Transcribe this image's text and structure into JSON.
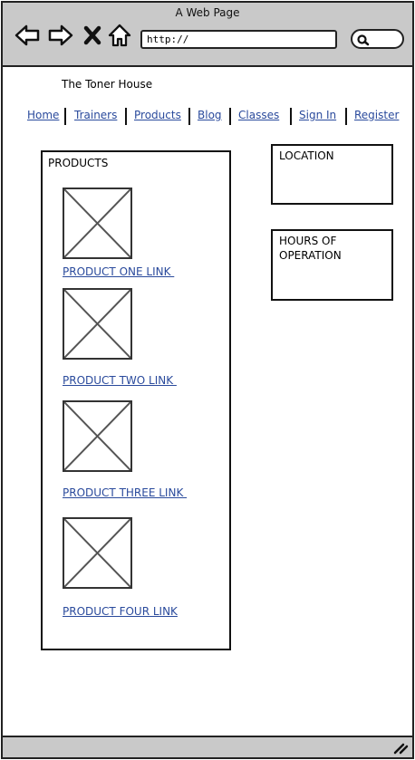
{
  "window": {
    "title": "A Web Page"
  },
  "browser": {
    "url": "http://",
    "buttons": {
      "back": "back-arrow-icon",
      "forward": "forward-arrow-icon",
      "stop": "close-x-icon",
      "home": "home-icon",
      "search": "search-icon"
    }
  },
  "site": {
    "title": "The Toner House"
  },
  "nav": {
    "items": [
      {
        "label": "Home"
      },
      {
        "label": "Trainers"
      },
      {
        "label": "Products"
      },
      {
        "label": "Blog"
      },
      {
        "label": "Classes"
      },
      {
        "label": "Sign In"
      },
      {
        "label": "Register"
      }
    ]
  },
  "products": {
    "heading": "PRODUCTS",
    "items": [
      {
        "link": "PRODUCT ONE LINK "
      },
      {
        "link": "PRODUCT TWO LINK "
      },
      {
        "link": "PRODUCT THREE LINK "
      },
      {
        "link": "PRODUCT FOUR LINK"
      }
    ]
  },
  "sidebar": {
    "location": "LOCATION",
    "hours": "HOURS OF OPERATION"
  },
  "colors": {
    "link": "#2a4a9c",
    "chrome": "#c9c9c9"
  }
}
